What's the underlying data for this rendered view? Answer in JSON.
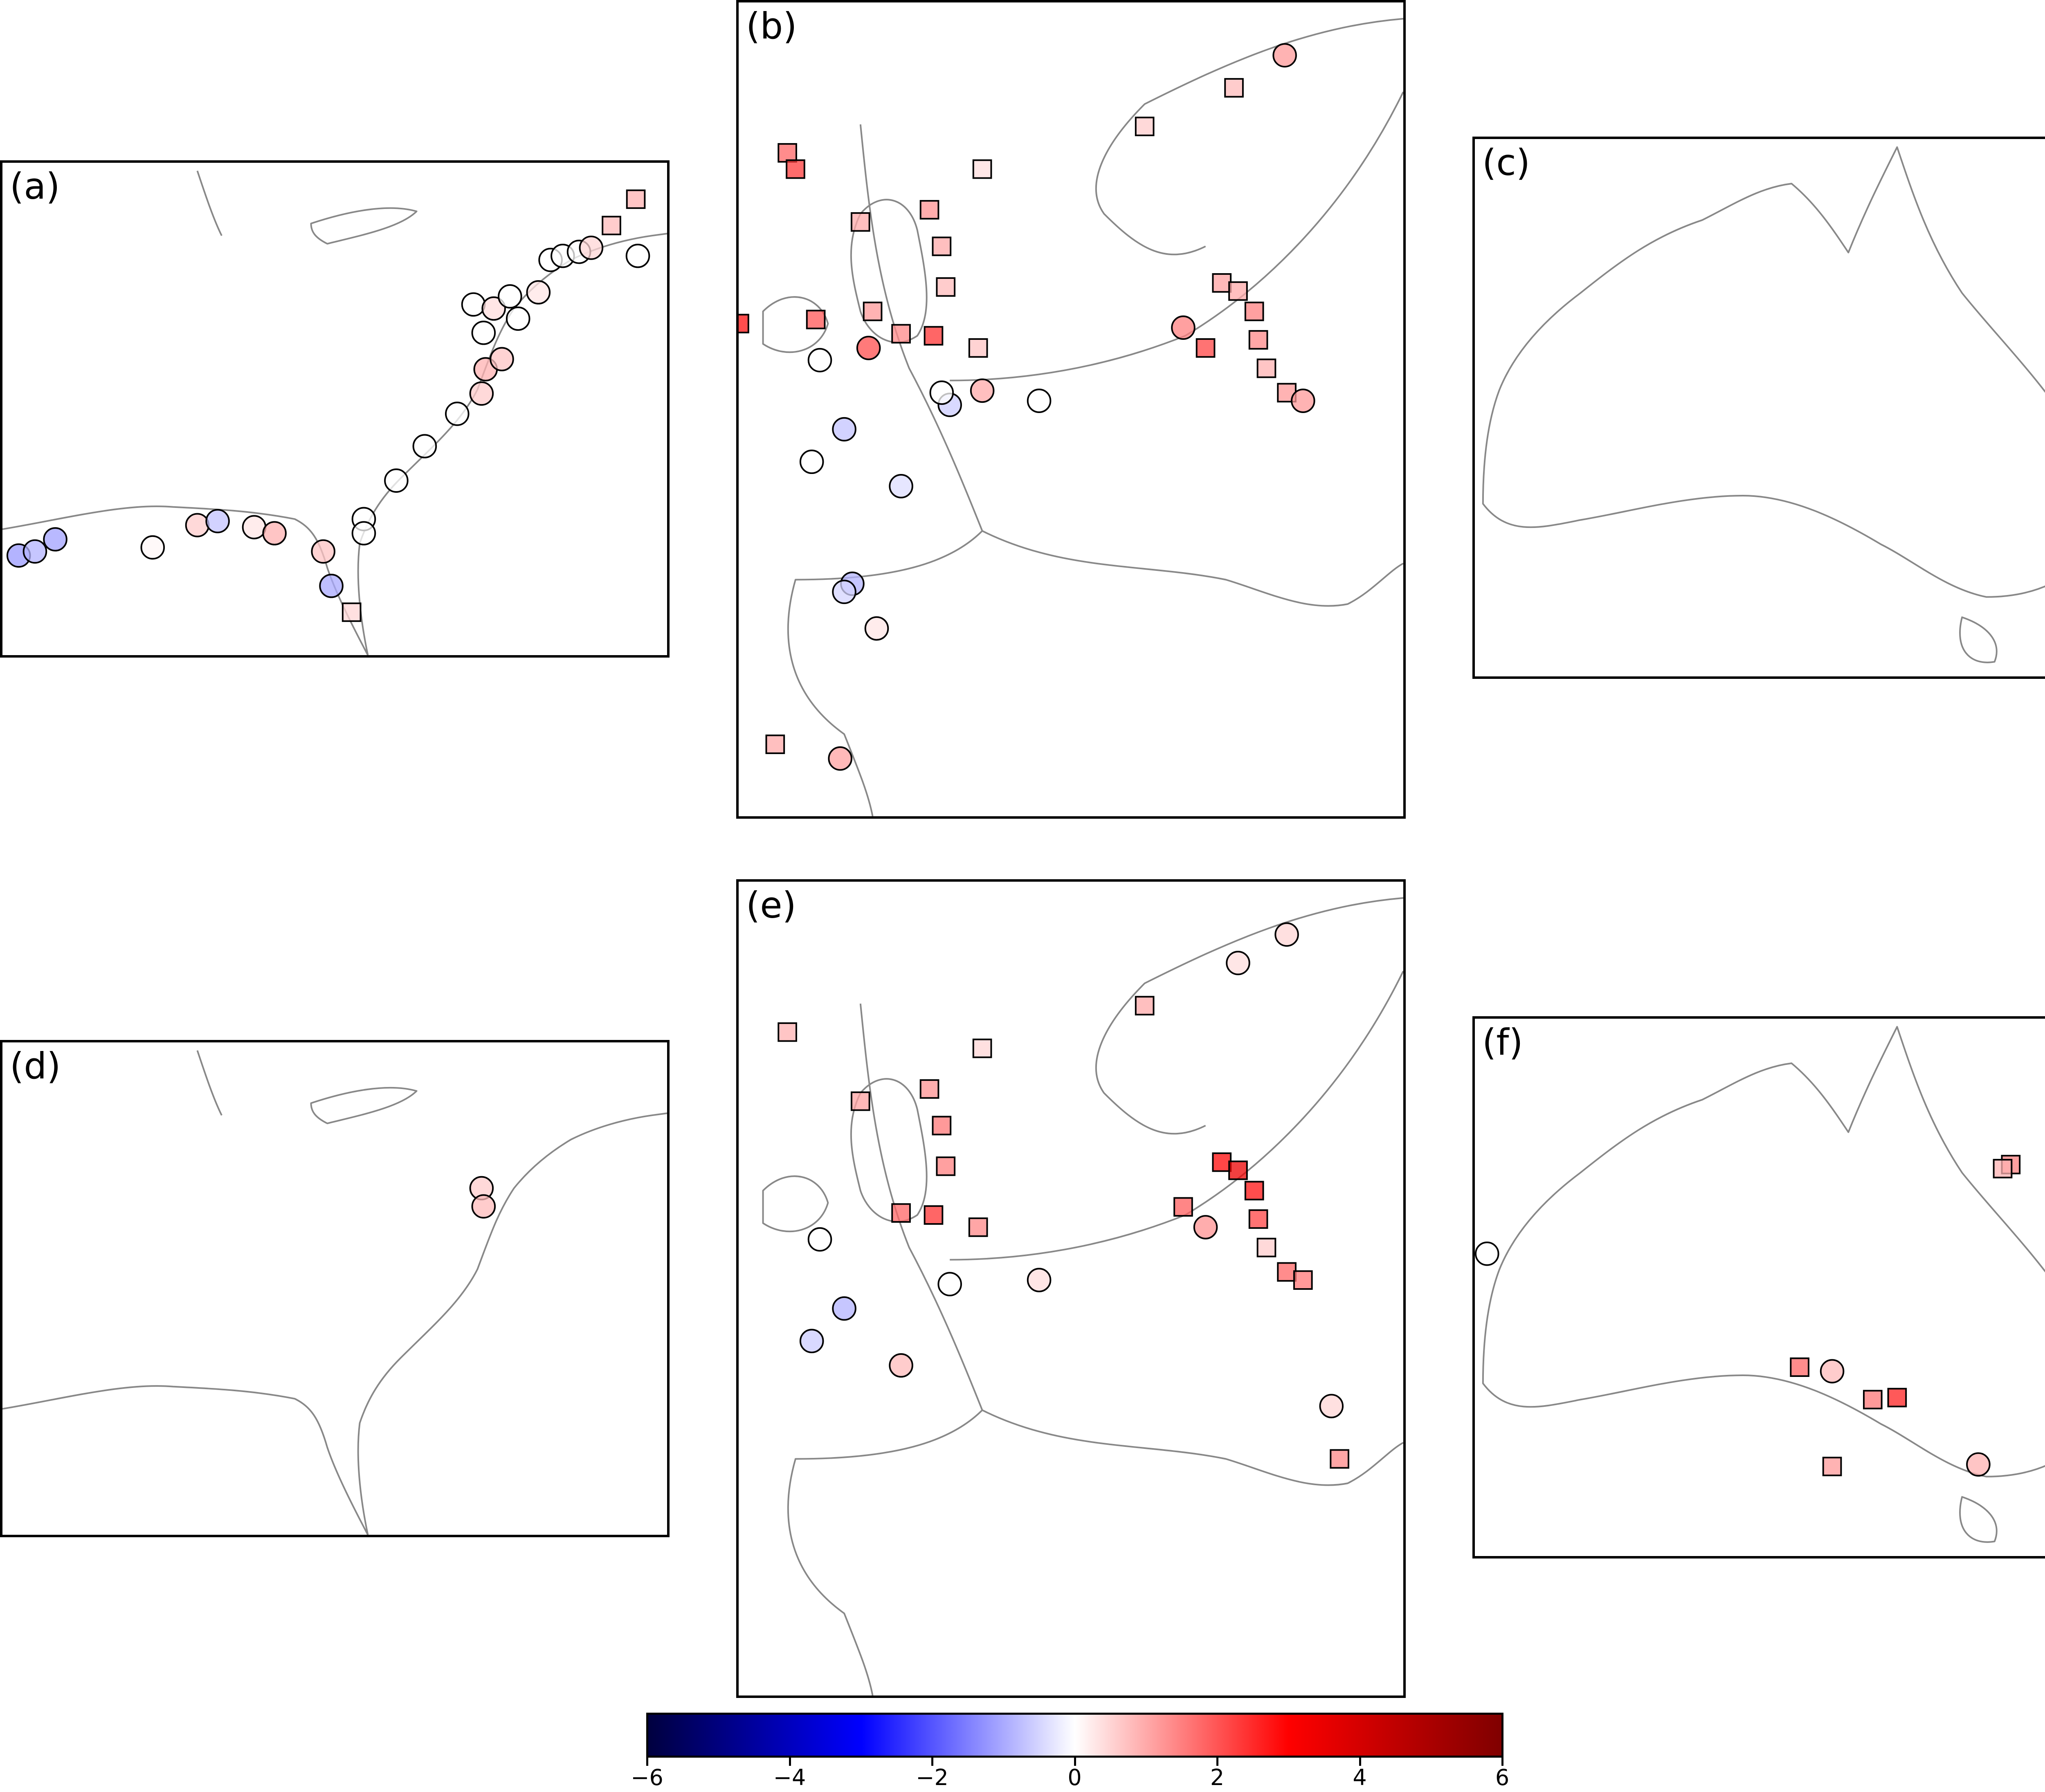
{
  "colors": {
    "coastline": "#888888",
    "colormap": [
      "#00003f",
      "#0000ff",
      "#ffffff",
      "#ff0000",
      "#800000"
    ]
  },
  "panels": [
    {
      "id": "a",
      "label": "(a)",
      "region": "US East and Gulf coast",
      "markers": [
        {
          "shape": "circle",
          "value": -1.2
        },
        {
          "shape": "circle",
          "value": -0.9
        },
        {
          "shape": "circle",
          "value": -1.1
        },
        {
          "shape": "circle",
          "value": 0.1
        },
        {
          "shape": "circle",
          "value": 0.6
        },
        {
          "shape": "circle",
          "value": -0.7
        },
        {
          "shape": "circle",
          "value": 0.3
        },
        {
          "shape": "circle",
          "value": 0.9
        },
        {
          "shape": "circle",
          "value": 0.7
        },
        {
          "shape": "square",
          "value": 0.5
        },
        {
          "shape": "circle",
          "value": -1.0
        },
        {
          "shape": "circle",
          "value": 0.0
        },
        {
          "shape": "circle",
          "value": 0.0
        },
        {
          "shape": "circle",
          "value": 0.0
        },
        {
          "shape": "circle",
          "value": 0.0
        },
        {
          "shape": "circle",
          "value": 0.0
        },
        {
          "shape": "circle",
          "value": 0.6
        },
        {
          "shape": "circle",
          "value": 0.9
        },
        {
          "shape": "circle",
          "value": 0.7
        },
        {
          "shape": "circle",
          "value": 0.0
        },
        {
          "shape": "circle",
          "value": 0.0
        },
        {
          "shape": "circle",
          "value": 0.4
        },
        {
          "shape": "circle",
          "value": 0.0
        },
        {
          "shape": "circle",
          "value": 0.0
        },
        {
          "shape": "circle",
          "value": 0.3
        },
        {
          "shape": "circle",
          "value": 0.0
        },
        {
          "shape": "circle",
          "value": 0.0
        },
        {
          "shape": "circle",
          "value": 0.0
        },
        {
          "shape": "circle",
          "value": 0.5
        },
        {
          "shape": "square",
          "value": 0.8
        },
        {
          "shape": "square",
          "value": 0.9
        },
        {
          "shape": "circle",
          "value": 0.0
        }
      ]
    },
    {
      "id": "b",
      "label": "(b)",
      "region": "Europe",
      "markers": [
        {
          "shape": "circle",
          "value": 1.2
        },
        {
          "shape": "square",
          "value": 0.8
        },
        {
          "shape": "square",
          "value": 0.6
        },
        {
          "shape": "square",
          "value": 0.4
        },
        {
          "shape": "square",
          "value": 1.0
        },
        {
          "shape": "square",
          "value": 1.3
        },
        {
          "shape": "square",
          "value": 1.0
        },
        {
          "shape": "square",
          "value": 0.8
        },
        {
          "shape": "square",
          "value": 0.7
        },
        {
          "shape": "square",
          "value": 1.4
        },
        {
          "shape": "square",
          "value": 2.4
        },
        {
          "shape": "square",
          "value": 2.8
        },
        {
          "shape": "square",
          "value": 1.1
        },
        {
          "shape": "square",
          "value": 1.0
        },
        {
          "shape": "square",
          "value": 1.5
        },
        {
          "shape": "square",
          "value": 1.4
        },
        {
          "shape": "square",
          "value": 0.9
        },
        {
          "shape": "square",
          "value": 1.2
        },
        {
          "shape": "circle",
          "value": 1.2
        },
        {
          "shape": "square",
          "value": 2.2
        },
        {
          "shape": "circle",
          "value": 1.5
        },
        {
          "shape": "circle",
          "value": 0.0
        },
        {
          "shape": "circle",
          "value": -0.6
        },
        {
          "shape": "circle",
          "value": 0.0
        },
        {
          "shape": "circle",
          "value": -0.7
        },
        {
          "shape": "circle",
          "value": 0.0
        },
        {
          "shape": "circle",
          "value": -0.4
        },
        {
          "shape": "square",
          "value": 1.8
        },
        {
          "shape": "square",
          "value": 2.3
        },
        {
          "shape": "circle",
          "value": 2.1
        },
        {
          "shape": "circle",
          "value": 1.0
        },
        {
          "shape": "circle",
          "value": -0.9
        },
        {
          "shape": "circle",
          "value": -0.5
        },
        {
          "shape": "circle",
          "value": 0.3
        },
        {
          "shape": "square",
          "value": 1.0
        },
        {
          "shape": "circle",
          "value": 1.1
        },
        {
          "shape": "square",
          "value": 2.0
        },
        {
          "shape": "square",
          "value": 1.2
        },
        {
          "shape": "circle",
          "value": 0.0
        }
      ]
    },
    {
      "id": "c",
      "label": "(c)",
      "region": "Australia",
      "markers": []
    },
    {
      "id": "d",
      "label": "(d)",
      "region": "US East and Gulf coast",
      "markers": [
        {
          "shape": "circle",
          "value": 0.6
        },
        {
          "shape": "circle",
          "value": 0.8
        }
      ]
    },
    {
      "id": "e",
      "label": "(e)",
      "region": "Europe",
      "markers": [
        {
          "shape": "circle",
          "value": 0.5
        },
        {
          "shape": "circle",
          "value": 0.4
        },
        {
          "shape": "square",
          "value": 1.0
        },
        {
          "shape": "square",
          "value": 0.5
        },
        {
          "shape": "square",
          "value": 1.1
        },
        {
          "shape": "square",
          "value": 1.3
        },
        {
          "shape": "square",
          "value": 1.6
        },
        {
          "shape": "square",
          "value": 1.5
        },
        {
          "shape": "square",
          "value": 1.4
        },
        {
          "shape": "square",
          "value": 1.8
        },
        {
          "shape": "square",
          "value": 2.4
        },
        {
          "shape": "square",
          "value": 2.9
        },
        {
          "shape": "square",
          "value": 3.4
        },
        {
          "shape": "square",
          "value": 2.8
        },
        {
          "shape": "square",
          "value": 2.2
        },
        {
          "shape": "square",
          "value": 0.6
        },
        {
          "shape": "square",
          "value": 1.8
        },
        {
          "shape": "square",
          "value": 1.6
        },
        {
          "shape": "circle",
          "value": 1.3
        },
        {
          "shape": "square",
          "value": 1.9
        },
        {
          "shape": "circle",
          "value": 0.0
        },
        {
          "shape": "circle",
          "value": 0.0
        },
        {
          "shape": "circle",
          "value": 0.4
        },
        {
          "shape": "circle",
          "value": -0.9
        },
        {
          "shape": "circle",
          "value": -0.6
        },
        {
          "shape": "circle",
          "value": 0.8
        },
        {
          "shape": "circle",
          "value": 0.5
        },
        {
          "shape": "square",
          "value": 1.4
        },
        {
          "shape": "square",
          "value": 0.9
        }
      ]
    },
    {
      "id": "f",
      "label": "(f)",
      "region": "Australia",
      "markers": [
        {
          "shape": "circle",
          "value": 0.0
        },
        {
          "shape": "square",
          "value": 1.5
        },
        {
          "shape": "square",
          "value": 0.9
        },
        {
          "shape": "circle",
          "value": 0.8
        },
        {
          "shape": "square",
          "value": 1.8
        },
        {
          "shape": "square",
          "value": 2.6
        },
        {
          "shape": "square",
          "value": 1.6
        },
        {
          "shape": "square",
          "value": 1.2
        },
        {
          "shape": "circle",
          "value": 0.9
        }
      ]
    }
  ],
  "colorbar": {
    "min": -6,
    "max": 6,
    "ticks": [
      "−6",
      "−4",
      "−2",
      "0",
      "2",
      "4",
      "6"
    ]
  }
}
